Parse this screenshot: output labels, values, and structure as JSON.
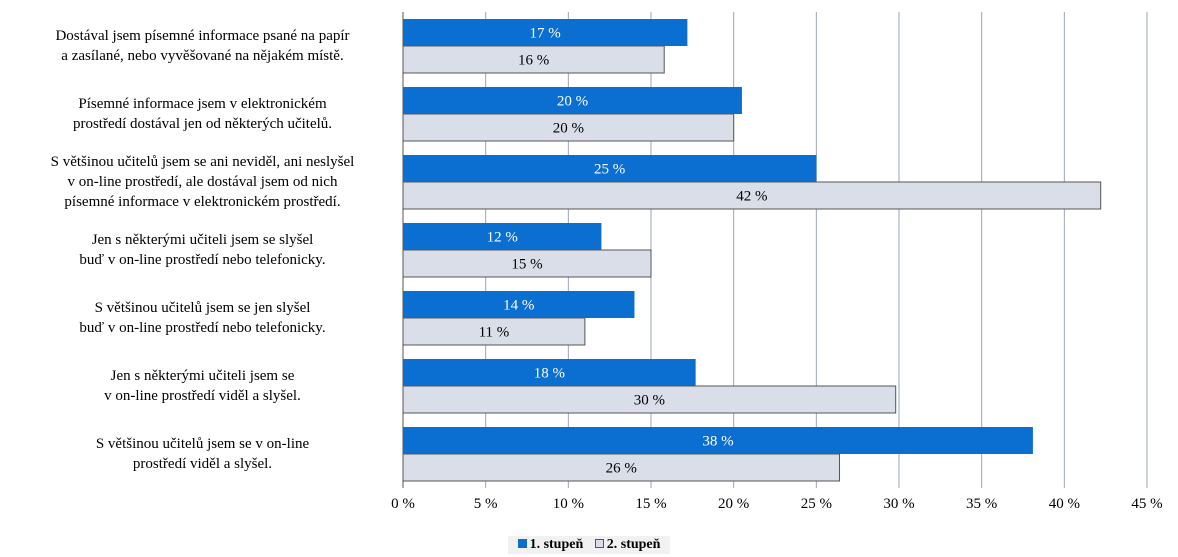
{
  "chart_data": {
    "type": "bar",
    "orientation": "horizontal",
    "categories": [
      "Dostával jsem písemné informace psané na papír\na zasílané, nebo vyvěšované na nějakém místě.",
      "Písemné informace jsem v elektronickém\nprostředí dostával jen od některých učitelů.",
      "S většinou učitelů jsem se ani neviděl, ani neslyšel\nv on-line prostředí, ale dostával jsem od nich\npísemné informace v elektronickém prostředí.",
      "Jen s některými učiteli jsem se slyšel\nbuď v on-line prostředí nebo telefonicky.",
      "S většinou učitelů jsem se jen slyšel\nbuď v on-line prostředí nebo telefonicky.",
      "Jen s některými učiteli jsem se\nv on-line prostředí viděl a slyšel.",
      "S většinou učitelů jsem se v on-line\nprostředí viděl a slyšel."
    ],
    "series": [
      {
        "name": "1. stupeň",
        "values": [
          17.2,
          20.5,
          25.0,
          12.0,
          14.0,
          17.7,
          38.1
        ],
        "labels": [
          "17 %",
          "20 %",
          "25 %",
          "12 %",
          "14 %",
          "18 %",
          "38 %"
        ],
        "color": "#0a6fd1"
      },
      {
        "name": "2. stupeň",
        "values": [
          15.8,
          20.0,
          42.2,
          15.0,
          11.0,
          29.8,
          26.4
        ],
        "labels": [
          "16 %",
          "20 %",
          "42 %",
          "15 %",
          "11 %",
          "30 %",
          "26 %"
        ],
        "color": "#d9dee8"
      }
    ],
    "xlim": [
      0,
      45
    ],
    "xticks": [
      "0 %",
      "5 %",
      "10 %",
      "15 %",
      "20 %",
      "25 %",
      "30 %",
      "35 %",
      "40 %",
      "45 %"
    ],
    "grid": true,
    "legend_position": "bottom"
  }
}
